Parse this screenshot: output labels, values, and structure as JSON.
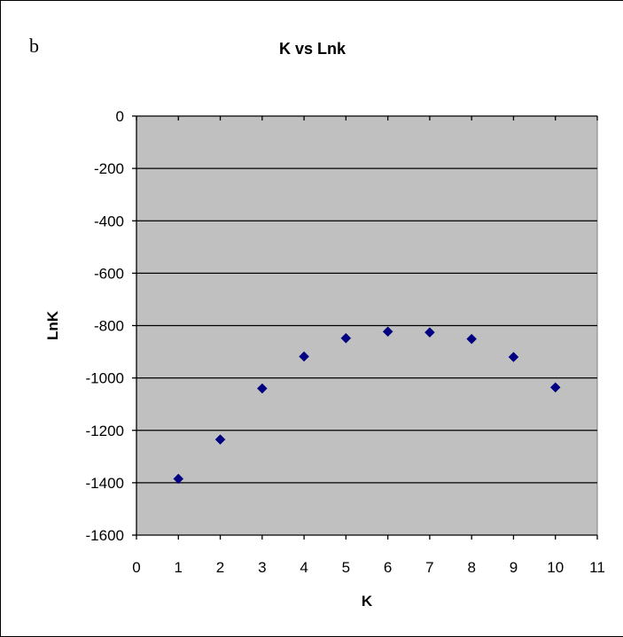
{
  "panel_label": "b",
  "chart_data": {
    "type": "scatter",
    "title": "K vs Lnk",
    "xlabel": "K",
    "ylabel": "LnK",
    "xlim": [
      0,
      11
    ],
    "ylim": [
      -1600,
      0
    ],
    "x_ticks": [
      0,
      1,
      2,
      3,
      4,
      5,
      6,
      7,
      8,
      9,
      10,
      11
    ],
    "y_ticks": [
      0,
      -200,
      -400,
      -600,
      -800,
      -1000,
      -1200,
      -1400,
      -1600
    ],
    "grid": "horizontal",
    "plot_background": "#c0c0c0",
    "series": [
      {
        "color": "#000080",
        "marker": "diamond",
        "x": [
          1,
          2,
          3,
          4,
          5,
          6,
          7,
          8,
          9,
          10
        ],
        "y": [
          -1385,
          -1235,
          -1040,
          -918,
          -848,
          -823,
          -826,
          -851,
          -920,
          -1036
        ]
      }
    ]
  }
}
